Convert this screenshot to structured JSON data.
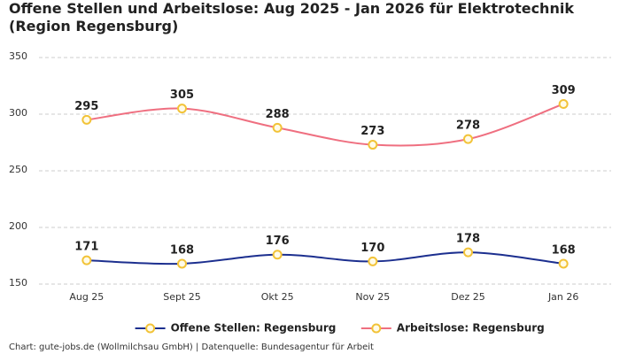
{
  "chart_data": {
    "type": "line",
    "title": "Offene Stellen und Arbeitslose: Aug 2025 - Jan 2026 für Elektrotechnik (Region Regensburg)",
    "categories": [
      "Aug 25",
      "Sept 25",
      "Okt 25",
      "Nov 25",
      "Dez 25",
      "Jan 26"
    ],
    "series": [
      {
        "name": "Offene Stellen: Regensburg",
        "color": "#1c2f8f",
        "values": [
          171,
          168,
          176,
          170,
          178,
          168
        ]
      },
      {
        "name": "Arbeitslose: Regensburg",
        "color": "#ef6f80",
        "values": [
          295,
          305,
          288,
          273,
          278,
          309
        ]
      }
    ],
    "marker_color": "#f2c338",
    "ylim": [
      150,
      350
    ],
    "yticks": [
      150,
      200,
      250,
      300,
      350
    ],
    "grid": true,
    "legend": "bottom",
    "source": "Chart: gute-jobs.de (Wollmilchsau GmbH) | Datenquelle: Bundesagentur für Arbeit"
  }
}
